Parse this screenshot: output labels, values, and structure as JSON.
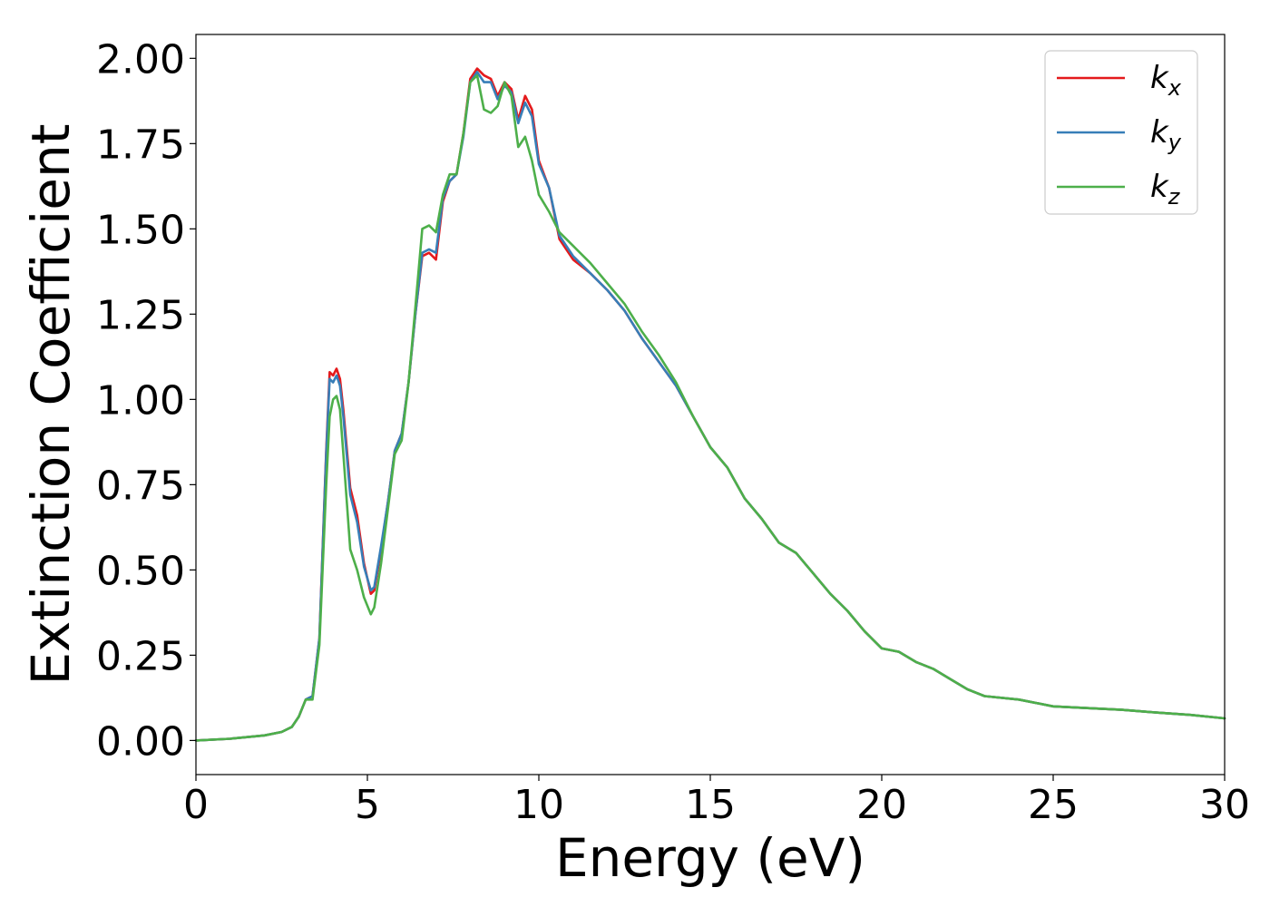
{
  "chart_data": {
    "type": "line",
    "title": "",
    "xlabel": "Energy (eV)",
    "ylabel": "Extinction Coefficient",
    "xlim": [
      0,
      30
    ],
    "ylim": [
      -0.1,
      2.07
    ],
    "xticks": [
      0,
      5,
      10,
      15,
      20,
      25,
      30
    ],
    "xtick_labels": [
      "0",
      "5",
      "10",
      "15",
      "20",
      "25",
      "30"
    ],
    "yticks": [
      0,
      0.25,
      0.5,
      0.75,
      1.0,
      1.25,
      1.5,
      1.75,
      2.0
    ],
    "ytick_labels": [
      "0.00",
      "0.25",
      "0.50",
      "0.75",
      "1.00",
      "1.25",
      "1.50",
      "1.75",
      "2.00"
    ],
    "grid": false,
    "legend": {
      "position": "top-right"
    },
    "series": [
      {
        "name": "k",
        "subscript": "x",
        "color": "#e41a1c",
        "x": [
          0,
          1,
          2,
          2.5,
          2.8,
          3.0,
          3.2,
          3.4,
          3.6,
          3.8,
          3.9,
          4.0,
          4.1,
          4.2,
          4.3,
          4.5,
          4.7,
          4.9,
          5.1,
          5.2,
          5.4,
          5.6,
          5.8,
          6.0,
          6.2,
          6.4,
          6.6,
          6.8,
          7.0,
          7.2,
          7.4,
          7.6,
          7.8,
          8.0,
          8.2,
          8.4,
          8.6,
          8.8,
          9.0,
          9.2,
          9.4,
          9.6,
          9.8,
          10.0,
          10.3,
          10.6,
          11.0,
          11.5,
          12.0,
          12.5,
          13.0,
          13.5,
          14.0,
          14.5,
          15.0,
          15.5,
          16.0,
          16.5,
          17.0,
          17.5,
          18.0,
          18.5,
          19.0,
          19.5,
          20.0,
          20.5,
          21.0,
          21.5,
          22.0,
          22.5,
          23.0,
          24.0,
          25.0,
          26.0,
          27.0,
          28.0,
          29.0,
          30.0
        ],
        "values": [
          0.0,
          0.005,
          0.015,
          0.025,
          0.04,
          0.07,
          0.12,
          0.13,
          0.3,
          0.85,
          1.08,
          1.07,
          1.09,
          1.06,
          0.97,
          0.74,
          0.66,
          0.52,
          0.43,
          0.44,
          0.56,
          0.7,
          0.85,
          0.9,
          1.05,
          1.25,
          1.42,
          1.43,
          1.41,
          1.58,
          1.64,
          1.66,
          1.78,
          1.94,
          1.97,
          1.95,
          1.94,
          1.89,
          1.93,
          1.91,
          1.82,
          1.89,
          1.85,
          1.7,
          1.62,
          1.47,
          1.41,
          1.37,
          1.32,
          1.26,
          1.18,
          1.11,
          1.04,
          0.95,
          0.86,
          0.8,
          0.71,
          0.65,
          0.58,
          0.55,
          0.49,
          0.43,
          0.38,
          0.32,
          0.27,
          0.26,
          0.23,
          0.21,
          0.18,
          0.15,
          0.13,
          0.12,
          0.1,
          0.095,
          0.09,
          0.082,
          0.075,
          0.065
        ]
      },
      {
        "name": "k",
        "subscript": "y",
        "color": "#377eb8",
        "x": [
          0,
          1,
          2,
          2.5,
          2.8,
          3.0,
          3.2,
          3.4,
          3.6,
          3.8,
          3.9,
          4.0,
          4.1,
          4.2,
          4.3,
          4.5,
          4.7,
          4.9,
          5.1,
          5.2,
          5.4,
          5.6,
          5.8,
          6.0,
          6.2,
          6.4,
          6.6,
          6.8,
          7.0,
          7.2,
          7.4,
          7.6,
          7.8,
          8.0,
          8.2,
          8.4,
          8.6,
          8.8,
          9.0,
          9.2,
          9.4,
          9.6,
          9.8,
          10.0,
          10.3,
          10.6,
          11.0,
          11.5,
          12.0,
          12.5,
          13.0,
          13.5,
          14.0,
          14.5,
          15.0,
          15.5,
          16.0,
          16.5,
          17.0,
          17.5,
          18.0,
          18.5,
          19.0,
          19.5,
          20.0,
          20.5,
          21.0,
          21.5,
          22.0,
          22.5,
          23.0,
          24.0,
          25.0,
          26.0,
          27.0,
          28.0,
          29.0,
          30.0
        ],
        "values": [
          0.0,
          0.005,
          0.015,
          0.025,
          0.04,
          0.07,
          0.12,
          0.13,
          0.3,
          0.84,
          1.06,
          1.05,
          1.07,
          1.04,
          0.95,
          0.72,
          0.64,
          0.51,
          0.44,
          0.45,
          0.57,
          0.7,
          0.85,
          0.9,
          1.05,
          1.25,
          1.43,
          1.44,
          1.43,
          1.59,
          1.64,
          1.66,
          1.77,
          1.93,
          1.96,
          1.93,
          1.93,
          1.88,
          1.92,
          1.9,
          1.81,
          1.87,
          1.83,
          1.69,
          1.62,
          1.48,
          1.42,
          1.37,
          1.32,
          1.26,
          1.18,
          1.11,
          1.04,
          0.95,
          0.86,
          0.8,
          0.71,
          0.65,
          0.58,
          0.55,
          0.49,
          0.43,
          0.38,
          0.32,
          0.27,
          0.26,
          0.23,
          0.21,
          0.18,
          0.15,
          0.13,
          0.12,
          0.1,
          0.095,
          0.09,
          0.082,
          0.075,
          0.065
        ]
      },
      {
        "name": "k",
        "subscript": "z",
        "color": "#4daf4a",
        "x": [
          0,
          1,
          2,
          2.5,
          2.8,
          3.0,
          3.2,
          3.4,
          3.6,
          3.8,
          3.9,
          4.0,
          4.1,
          4.2,
          4.3,
          4.5,
          4.7,
          4.9,
          5.1,
          5.2,
          5.4,
          5.6,
          5.8,
          6.0,
          6.2,
          6.4,
          6.6,
          6.8,
          7.0,
          7.2,
          7.4,
          7.6,
          7.8,
          8.0,
          8.2,
          8.4,
          8.6,
          8.8,
          9.0,
          9.2,
          9.4,
          9.6,
          9.8,
          10.0,
          10.3,
          10.6,
          11.0,
          11.5,
          12.0,
          12.5,
          13.0,
          13.5,
          14.0,
          14.5,
          15.0,
          15.5,
          16.0,
          16.5,
          17.0,
          17.5,
          18.0,
          18.5,
          19.0,
          19.5,
          20.0,
          20.5,
          21.0,
          21.5,
          22.0,
          22.5,
          23.0,
          24.0,
          25.0,
          26.0,
          27.0,
          28.0,
          29.0,
          30.0
        ],
        "values": [
          0.0,
          0.005,
          0.015,
          0.025,
          0.04,
          0.07,
          0.12,
          0.12,
          0.28,
          0.75,
          0.95,
          1.0,
          1.01,
          0.97,
          0.84,
          0.56,
          0.5,
          0.42,
          0.37,
          0.39,
          0.52,
          0.68,
          0.84,
          0.88,
          1.05,
          1.27,
          1.5,
          1.51,
          1.49,
          1.6,
          1.66,
          1.66,
          1.78,
          1.93,
          1.95,
          1.85,
          1.84,
          1.86,
          1.93,
          1.89,
          1.74,
          1.77,
          1.7,
          1.6,
          1.55,
          1.49,
          1.45,
          1.4,
          1.34,
          1.28,
          1.2,
          1.13,
          1.05,
          0.95,
          0.86,
          0.8,
          0.71,
          0.65,
          0.58,
          0.55,
          0.49,
          0.43,
          0.38,
          0.32,
          0.27,
          0.26,
          0.23,
          0.21,
          0.18,
          0.15,
          0.13,
          0.12,
          0.1,
          0.095,
          0.09,
          0.082,
          0.075,
          0.065
        ]
      }
    ]
  }
}
